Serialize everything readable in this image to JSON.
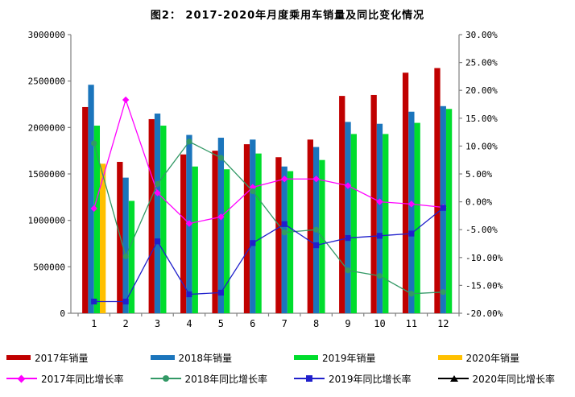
{
  "title": "图2： 2017-2020年月度乘用车销量及同比变化情况",
  "chart_data": {
    "type": "bar",
    "subtype": "combo-bar-line-dual-axis",
    "categories": [
      "1",
      "2",
      "3",
      "4",
      "5",
      "6",
      "7",
      "8",
      "9",
      "10",
      "11",
      "12"
    ],
    "left_axis": {
      "min": 0,
      "max": 3000000,
      "step": 500000,
      "tick_labels": [
        "3000000",
        "2500000",
        "2000000",
        "1500000",
        "1000000",
        "500000",
        "0"
      ]
    },
    "right_axis": {
      "min": -20,
      "max": 30,
      "step": 5,
      "tick_labels": [
        "30.00%",
        "25.00%",
        "20.00%",
        "15.00%",
        "10.00%",
        "5.00%",
        "0.00%",
        "-5.00%",
        "-10.00%",
        "-15.00%",
        "-20.00%"
      ]
    },
    "grid": "off",
    "legend_position": "bottom",
    "bar_series": [
      {
        "name": "2017年销量",
        "color": "#C00000",
        "values": [
          2220000,
          1630000,
          2090000,
          1710000,
          1750000,
          1820000,
          1680000,
          1870000,
          2340000,
          2350000,
          2590000,
          2640000
        ]
      },
      {
        "name": "2018年销量",
        "color": "#1B75BC",
        "values": [
          2460000,
          1460000,
          2150000,
          1920000,
          1890000,
          1870000,
          1580000,
          1790000,
          2060000,
          2040000,
          2170000,
          2230000
        ]
      },
      {
        "name": "2019年销量",
        "color": "#00DD2D",
        "values": [
          2020000,
          1210000,
          2020000,
          1580000,
          1550000,
          1720000,
          1530000,
          1650000,
          1930000,
          1930000,
          2050000,
          2200000
        ]
      },
      {
        "name": "2020年销量",
        "color": "#FFC000",
        "values": [
          1610000,
          null,
          null,
          null,
          null,
          null,
          null,
          null,
          null,
          null,
          null,
          null
        ]
      }
    ],
    "line_series": [
      {
        "name": "2017年同比增长率",
        "color": "#FF00FF",
        "marker": "diamond",
        "values": [
          -1.2,
          18.3,
          1.6,
          -3.9,
          -2.7,
          2.6,
          4.1,
          4.1,
          2.9,
          0.0,
          -0.4,
          -1.0
        ]
      },
      {
        "name": "2018年同比增长率",
        "color": "#339966",
        "marker": "circle",
        "values": [
          10.5,
          -9.8,
          3.2,
          10.8,
          7.9,
          1.9,
          -5.5,
          -5.0,
          -12.3,
          -13.3,
          -16.5,
          -16.2
        ]
      },
      {
        "name": "2019年同比增长率",
        "color": "#2020CC",
        "marker": "square",
        "values": [
          -17.9,
          -17.9,
          -7.1,
          -16.6,
          -16.3,
          -7.4,
          -4.0,
          -7.8,
          -6.5,
          -6.1,
          -5.7,
          -1.1
        ]
      },
      {
        "name": "2020年同比增长率",
        "color": "#000000",
        "marker": "triangle",
        "values": [
          null,
          null,
          null,
          null,
          null,
          null,
          null,
          null,
          null,
          null,
          null,
          null
        ]
      }
    ],
    "axis_color": "#808080"
  }
}
